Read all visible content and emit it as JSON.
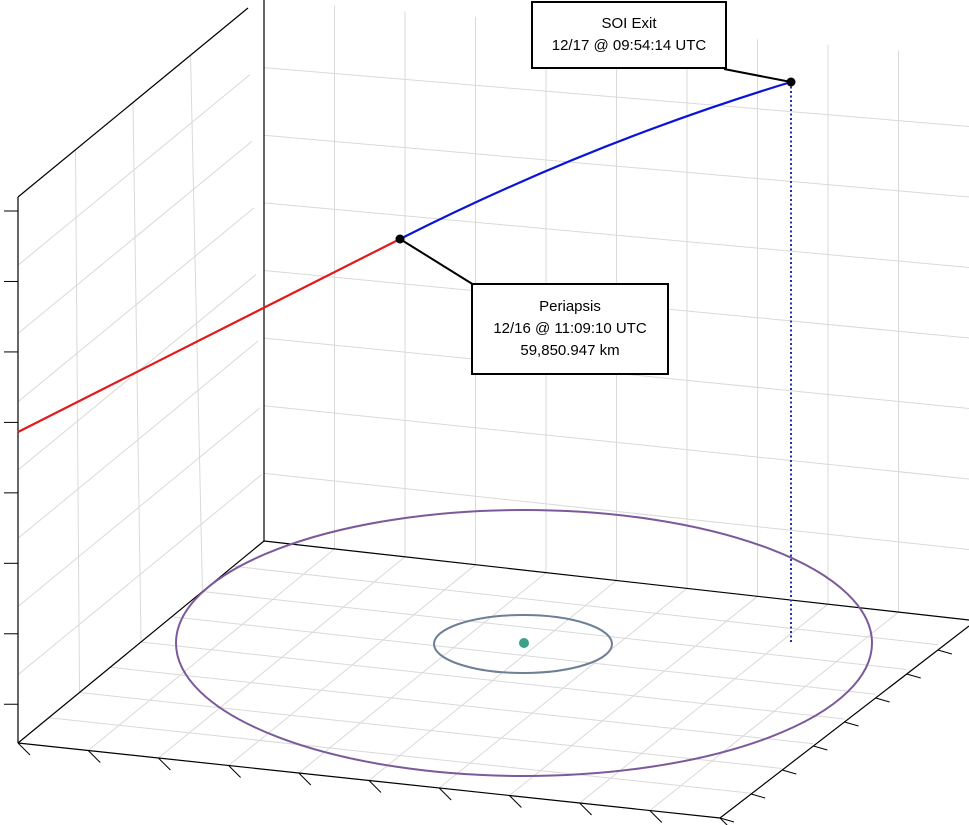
{
  "colors": {
    "incoming_leg": "#e31a1c",
    "outgoing_leg": "#0a14d6",
    "drop_line": "#2233aa",
    "outer_orbit": "#7a5a9a",
    "inner_orbit": "#6e7f95",
    "central_body": "#3aa08a",
    "grid": "#d9d9d9",
    "frame": "#000000"
  },
  "annotations": {
    "soi_exit": {
      "line1": "SOI Exit",
      "line2": "12/17 @ 09:54:14 UTC"
    },
    "periapsis": {
      "line1": "Periapsis",
      "line2": "12/16 @ 11:09:10 UTC",
      "line3": "59,850.947 km"
    }
  }
}
